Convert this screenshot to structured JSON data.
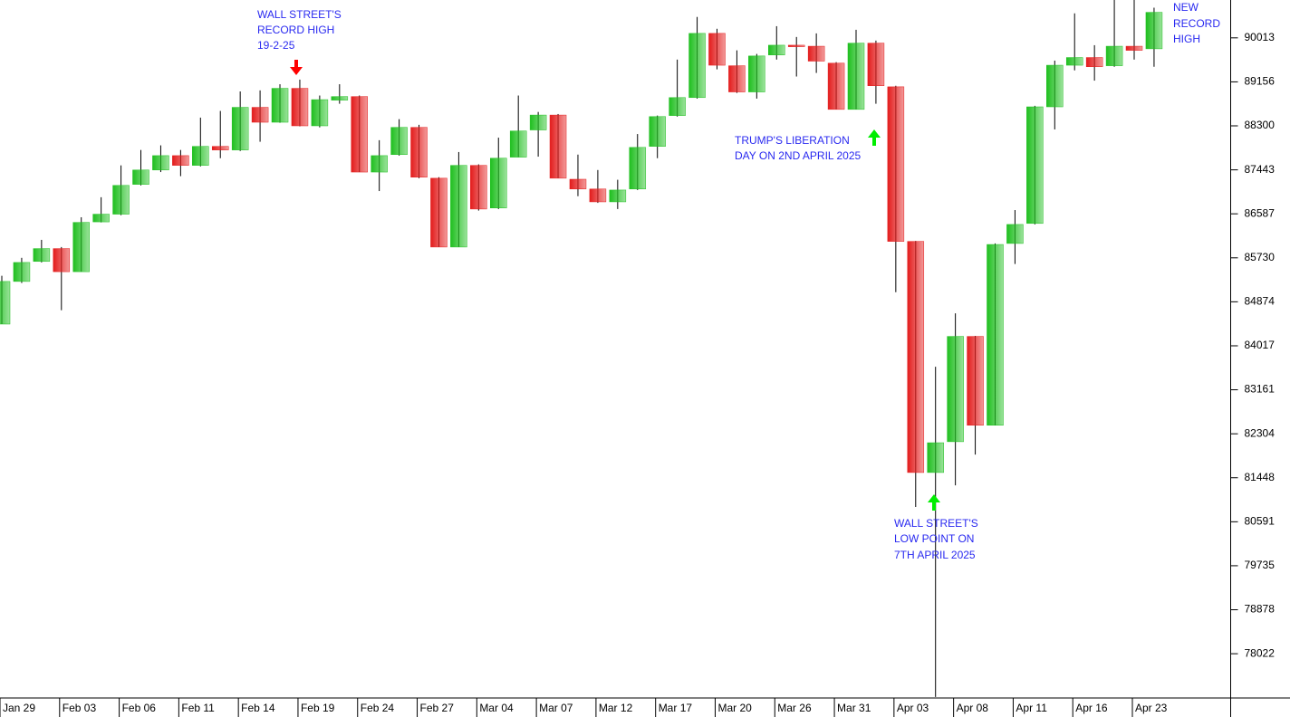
{
  "chart_data": {
    "type": "candlestick",
    "categories": [
      "Jan 29",
      null,
      null,
      "Feb 03",
      null,
      null,
      "Feb 06",
      null,
      null,
      "Feb 11",
      null,
      null,
      "Feb 14",
      null,
      null,
      "Feb 19",
      null,
      null,
      "Feb 24",
      null,
      null,
      "Feb 27",
      null,
      null,
      "Mar 04",
      null,
      null,
      "Mar 07",
      null,
      null,
      "Mar 12",
      null,
      null,
      "Mar 17",
      null,
      null,
      "Mar 20",
      null,
      null,
      "Mar 26",
      null,
      null,
      "Mar 31",
      null,
      null,
      "Apr 03",
      null,
      null,
      "Apr 08",
      null,
      null,
      "Apr 11",
      null,
      null,
      "Apr 16",
      null,
      null,
      "Apr 23",
      null
    ],
    "open": [
      84440,
      85270,
      85660,
      85910,
      85460,
      86430,
      86580,
      87160,
      87440,
      87720,
      87530,
      87900,
      87830,
      88660,
      88370,
      89030,
      88300,
      88800,
      88870,
      87400,
      87740,
      88270,
      87280,
      85940,
      87530,
      86700,
      87690,
      88220,
      88510,
      87260,
      87070,
      86820,
      87070,
      87900,
      88500,
      88850,
      90100,
      89470,
      88960,
      89680,
      89870,
      89850,
      89520,
      88620,
      89910,
      89060,
      86050,
      81550,
      82150,
      84200,
      82470,
      86010,
      86400,
      88670,
      89480,
      89630,
      89470,
      89850,
      89800
    ],
    "high": [
      85380,
      85730,
      86080,
      85940,
      86520,
      86910,
      87530,
      87830,
      87920,
      87830,
      88460,
      88590,
      88970,
      88990,
      89110,
      89200,
      88890,
      89110,
      88890,
      88020,
      88430,
      88320,
      87300,
      87790,
      87550,
      88070,
      88890,
      88570,
      88530,
      87740,
      87440,
      87250,
      88140,
      88500,
      89590,
      90420,
      90190,
      89770,
      89700,
      90240,
      90030,
      90100,
      89540,
      90170,
      89960,
      89080,
      86060,
      83610,
      84650,
      84210,
      86010,
      86660,
      88690,
      89570,
      90490,
      89870,
      90750,
      90750,
      90600
    ],
    "low": [
      84440,
      85240,
      85640,
      84710,
      85460,
      86420,
      86560,
      87140,
      87400,
      87320,
      87510,
      87670,
      87810,
      87990,
      88360,
      88290,
      88270,
      88730,
      87400,
      87030,
      87720,
      87280,
      85940,
      85940,
      86650,
      86680,
      87690,
      87700,
      87280,
      86930,
      86800,
      86680,
      87050,
      87670,
      88480,
      88830,
      89400,
      88940,
      88830,
      89590,
      89260,
      89330,
      88620,
      88620,
      88730,
      85060,
      80880,
      77180,
      81300,
      81900,
      82470,
      85610,
      86380,
      88230,
      89380,
      89180,
      89450,
      89590,
      89450
    ],
    "close": [
      85270,
      85640,
      85910,
      85460,
      86420,
      86580,
      87140,
      87440,
      87720,
      87530,
      87900,
      87830,
      88660,
      88370,
      89030,
      88300,
      88810,
      88870,
      87400,
      87720,
      88270,
      87300,
      85940,
      87530,
      86680,
      87670,
      88200,
      88510,
      87280,
      87070,
      86820,
      87050,
      87880,
      88480,
      88850,
      90100,
      89480,
      88960,
      89660,
      89870,
      89840,
      89560,
      88620,
      89910,
      89080,
      86050,
      81550,
      82130,
      84200,
      82470,
      85990,
      86380,
      88670,
      89480,
      89630,
      89450,
      89850,
      89770,
      90510
    ],
    "up_color": "#1fbf1f",
    "down_color": "#e31c1c",
    "ylim": [
      77160,
      90750
    ],
    "yticks": [
      90013,
      89156,
      88300,
      87443,
      86587,
      85730,
      84874,
      84017,
      83161,
      82304,
      81448,
      80591,
      79735,
      78878,
      78022
    ],
    "y_axis_side": "right",
    "grid": false,
    "annotations": [
      {
        "lines": [
          "WALL STREET'S",
          "RECORD HIGH",
          "19-2-25"
        ]
      },
      {
        "lines": [
          "TRUMP'S LIBERATION",
          "DAY ON 2ND APRIL 2025"
        ]
      },
      {
        "lines": [
          "WALL STREET'S",
          "LOW POINT ON",
          "7TH APRIL 2025"
        ]
      },
      {
        "lines": [
          "NEW",
          "RECORD",
          "HIGH"
        ]
      }
    ]
  }
}
